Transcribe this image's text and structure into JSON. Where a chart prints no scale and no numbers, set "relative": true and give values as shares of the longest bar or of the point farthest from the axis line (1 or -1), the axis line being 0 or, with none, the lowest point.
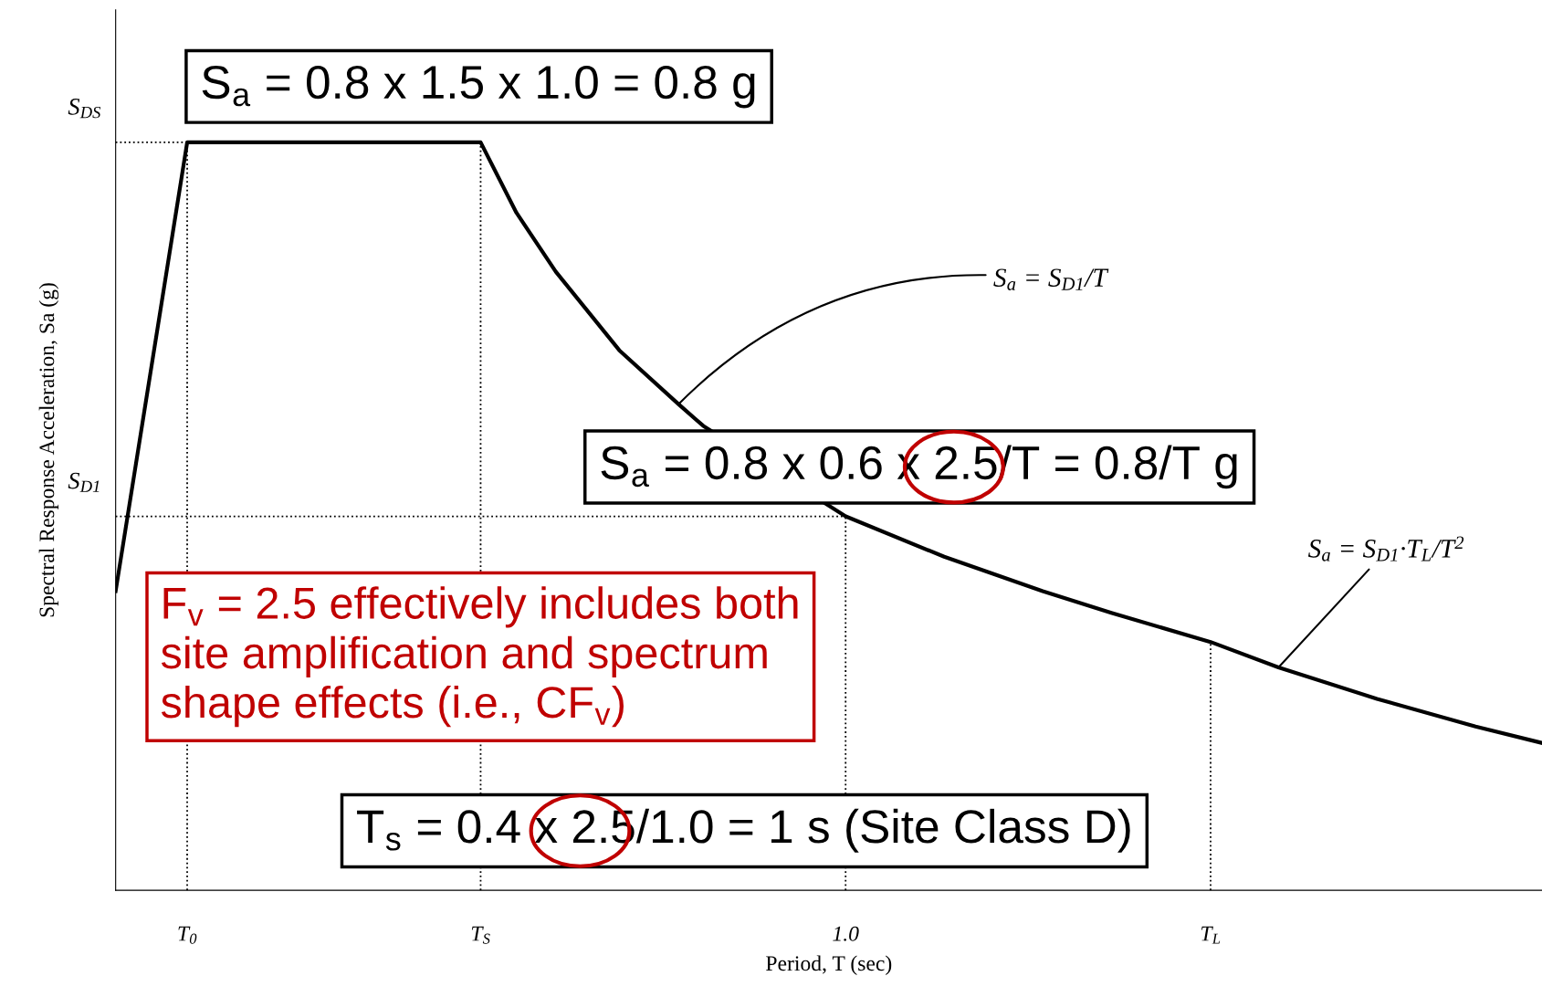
{
  "chart_data": {
    "type": "line",
    "relative": true,
    "xlabel": "Period, T (sec)",
    "ylabel": "Spectral Response Acceleration, Sa (g)",
    "x": [
      0,
      0.098,
      0.5,
      0.549,
      0.603,
      0.69,
      0.771,
      0.805,
      1.0,
      1.135,
      1.27,
      1.364,
      1.5,
      1.593,
      1.728,
      1.863,
      1.954
    ],
    "series": [
      {
        "color": "#000000",
        "values": [
          0.4,
          1,
          1,
          0.906,
          0.827,
          0.722,
          0.65,
          0.621,
          0.5,
          0.446,
          0.4,
          0.371,
          0.332,
          0.298,
          0.256,
          0.219,
          0.197
        ]
      }
    ],
    "xlim": [
      0,
      1.954
    ],
    "xticks": [
      {
        "value": 0.098,
        "label": "T$_{0}$"
      },
      {
        "value": 0.5,
        "label": "T$_{S}$"
      },
      {
        "value": 1.0,
        "label": "1.0"
      },
      {
        "value": 1.5,
        "label": "T$_{L}$"
      }
    ],
    "ref_lines": [
      {
        "axis": "y",
        "value": 1,
        "label": "S$_{DS}$",
        "line_style": "dotted"
      },
      {
        "axis": "y",
        "value": 0.5,
        "label": "S$_{D1}$",
        "line_style": "dotted"
      },
      {
        "axis": "x",
        "value": 0.098,
        "line_style": "dotted"
      },
      {
        "axis": "x",
        "value": 0.5,
        "line_style": "dotted"
      },
      {
        "axis": "x",
        "value": 1.0,
        "line_style": "dotted"
      },
      {
        "axis": "x",
        "value": 1.5,
        "line_style": "dotted"
      }
    ],
    "annotations": [
      "S$_{a}$ = 0.8 x 1.5 x 1.0 = 0.8 g",
      "S$_{a}$ = 0.8 x 0.6 x 2.5/T = 0.8/T g",
      "F$_{v}$ = 2.5 effectively includes both\nsite amplification and spectrum\nshape effects (i.e., CF$_{v}$)",
      "T$_{s}$ = 0.4 x 2.5/1.0 = 1 s (Site Class D)",
      {
        "text": "S$_{a}$ = S$_{D1}$/T",
        "x": 0.771,
        "y": 0.65
      },
      {
        "text": "S$_{a}$ = S$_{D1}$·T$_{L}$/T$^{2}$",
        "x": 1.593,
        "y": 0.298
      }
    ],
    "grid": false,
    "marker": "none",
    "line_style": "solid"
  }
}
